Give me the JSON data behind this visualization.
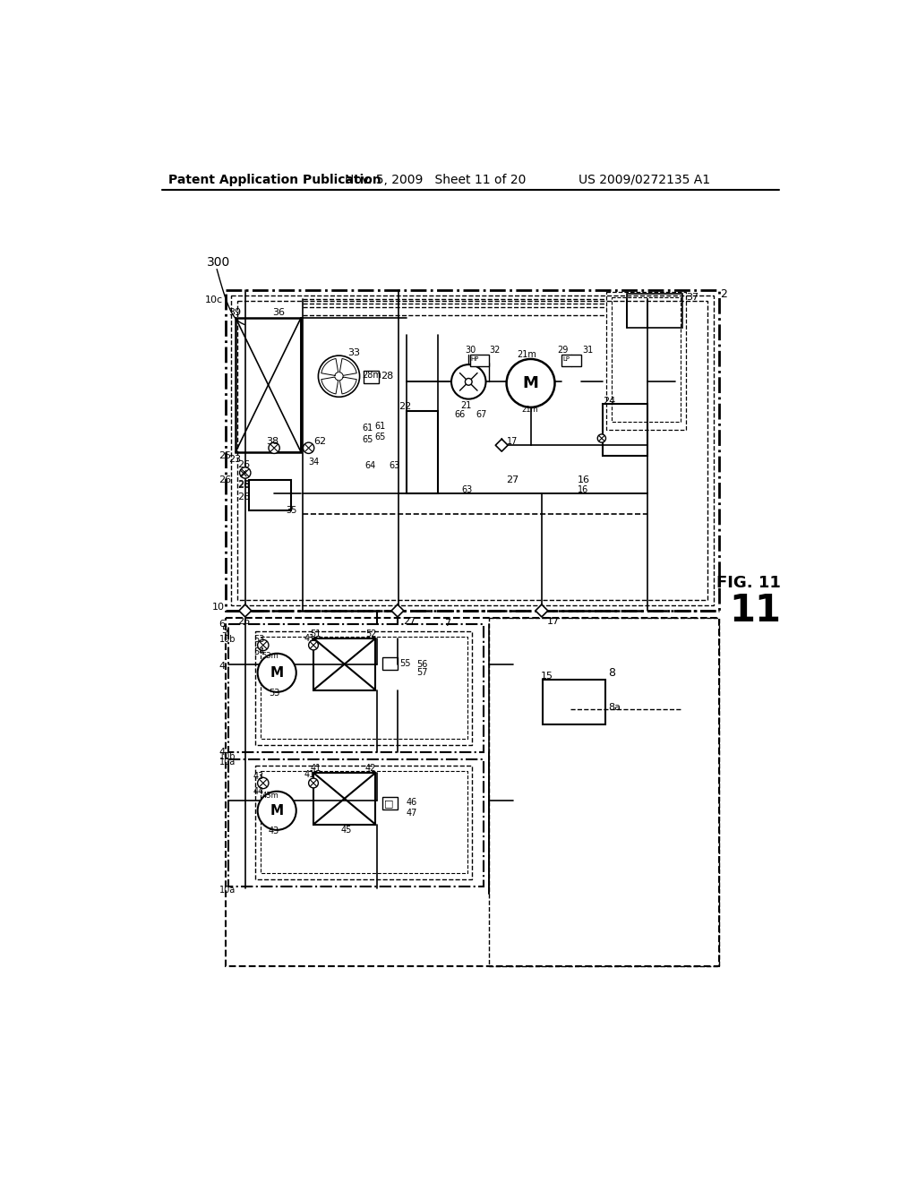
{
  "bg_color": "#ffffff",
  "header_left": "Patent Application Publication",
  "header_mid": "Nov. 5, 2009   Sheet 11 of 20",
  "header_right": "US 2009/0272135 A1",
  "fig_label": "FIG. 11"
}
